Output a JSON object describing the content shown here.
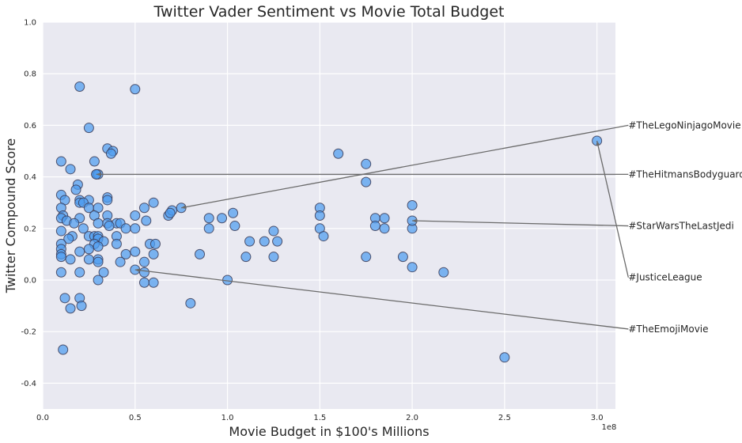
{
  "chart_data": {
    "type": "scatter",
    "title": "Twitter Vader Sentiment vs Movie Total Budget",
    "xlabel": "Movie Budget in $100's Millions",
    "ylabel": "Twitter Compound Score",
    "x_offset_label": "1e8",
    "xlim": [
      0,
      3.1
    ],
    "ylim": [
      -0.5,
      1.0
    ],
    "x_unit_note": "x values in units of 1e8",
    "xticks": [
      "0.0",
      "0.5",
      "1.0",
      "1.5",
      "2.0",
      "2.5",
      "3.0"
    ],
    "xtick_values": [
      0,
      0.5,
      1.0,
      1.5,
      2.0,
      2.5,
      3.0
    ],
    "yticks": [
      "-0.4",
      "-0.2",
      "0.0",
      "0.2",
      "0.4",
      "0.6",
      "0.8",
      "1.0"
    ],
    "ytick_values": [
      -0.4,
      -0.2,
      0.0,
      0.2,
      0.4,
      0.6,
      0.8,
      1.0
    ],
    "grid": true,
    "background": "#e9e9f1",
    "marker_color": "#4d9cf0",
    "marker_edge": "#3a3a55",
    "points": [
      [
        0.2,
        0.75
      ],
      [
        0.5,
        0.74
      ],
      [
        0.25,
        0.59
      ],
      [
        0.35,
        0.51
      ],
      [
        0.38,
        0.5
      ],
      [
        0.37,
        0.49
      ],
      [
        0.1,
        0.46
      ],
      [
        0.28,
        0.46
      ],
      [
        0.15,
        0.43
      ],
      [
        0.29,
        0.41
      ],
      [
        0.3,
        0.41
      ],
      [
        0.19,
        0.37
      ],
      [
        0.18,
        0.35
      ],
      [
        0.1,
        0.33
      ],
      [
        0.35,
        0.32
      ],
      [
        0.12,
        0.31
      ],
      [
        0.2,
        0.31
      ],
      [
        0.25,
        0.31
      ],
      [
        0.35,
        0.31
      ],
      [
        0.2,
        0.3
      ],
      [
        0.22,
        0.3
      ],
      [
        0.6,
        0.3
      ],
      [
        0.1,
        0.28
      ],
      [
        0.25,
        0.28
      ],
      [
        0.3,
        0.28
      ],
      [
        0.55,
        0.28
      ],
      [
        0.28,
        0.25
      ],
      [
        0.35,
        0.25
      ],
      [
        0.2,
        0.24
      ],
      [
        0.11,
        0.25
      ],
      [
        0.5,
        0.25
      ],
      [
        0.1,
        0.24
      ],
      [
        0.13,
        0.23
      ],
      [
        0.56,
        0.23
      ],
      [
        0.35,
        0.22
      ],
      [
        0.3,
        0.22
      ],
      [
        0.4,
        0.22
      ],
      [
        0.42,
        0.22
      ],
      [
        0.17,
        0.22
      ],
      [
        0.36,
        0.21
      ],
      [
        0.22,
        0.2
      ],
      [
        0.45,
        0.2
      ],
      [
        0.5,
        0.2
      ],
      [
        0.1,
        0.19
      ],
      [
        0.25,
        0.17
      ],
      [
        0.28,
        0.17
      ],
      [
        0.3,
        0.17
      ],
      [
        0.16,
        0.17
      ],
      [
        0.4,
        0.17
      ],
      [
        0.14,
        0.16
      ],
      [
        0.3,
        0.16
      ],
      [
        0.33,
        0.15
      ],
      [
        0.28,
        0.14
      ],
      [
        0.1,
        0.14
      ],
      [
        0.4,
        0.14
      ],
      [
        0.58,
        0.14
      ],
      [
        0.61,
        0.14
      ],
      [
        0.3,
        0.13
      ],
      [
        0.1,
        0.12
      ],
      [
        0.25,
        0.12
      ],
      [
        0.2,
        0.11
      ],
      [
        0.5,
        0.11
      ],
      [
        0.1,
        0.1
      ],
      [
        0.45,
        0.1
      ],
      [
        0.6,
        0.1
      ],
      [
        0.1,
        0.09
      ],
      [
        0.3,
        0.08
      ],
      [
        0.15,
        0.08
      ],
      [
        0.25,
        0.08
      ],
      [
        0.42,
        0.07
      ],
      [
        0.55,
        0.07
      ],
      [
        0.3,
        0.07
      ],
      [
        0.1,
        0.03
      ],
      [
        0.2,
        0.03
      ],
      [
        0.33,
        0.03
      ],
      [
        0.55,
        0.03
      ],
      [
        0.3,
        0.0
      ],
      [
        0.55,
        -0.01
      ],
      [
        0.6,
        -0.01
      ],
      [
        0.12,
        -0.07
      ],
      [
        0.2,
        -0.07
      ],
      [
        0.15,
        -0.11
      ],
      [
        0.21,
        -0.1
      ],
      [
        0.11,
        -0.27
      ],
      [
        0.68,
        0.25
      ],
      [
        0.7,
        0.27
      ],
      [
        0.69,
        0.26
      ],
      [
        0.9,
        0.24
      ],
      [
        0.97,
        0.24
      ],
      [
        1.03,
        0.26
      ],
      [
        0.9,
        0.2
      ],
      [
        1.04,
        0.21
      ],
      [
        0.85,
        0.1
      ],
      [
        1.12,
        0.15
      ],
      [
        1.1,
        0.09
      ],
      [
        1.2,
        0.15
      ],
      [
        1.25,
        0.19
      ],
      [
        1.27,
        0.15
      ],
      [
        1.25,
        0.09
      ],
      [
        0.8,
        -0.09
      ],
      [
        1.0,
        0.0
      ],
      [
        1.5,
        0.28
      ],
      [
        1.5,
        0.25
      ],
      [
        1.5,
        0.2
      ],
      [
        1.52,
        0.17
      ],
      [
        1.6,
        0.49
      ],
      [
        1.75,
        0.45
      ],
      [
        1.75,
        0.38
      ],
      [
        1.8,
        0.24
      ],
      [
        1.85,
        0.24
      ],
      [
        1.8,
        0.21
      ],
      [
        1.85,
        0.2
      ],
      [
        1.75,
        0.09
      ],
      [
        1.95,
        0.09
      ],
      [
        2.0,
        0.29
      ],
      [
        2.0,
        0.2
      ],
      [
        2.0,
        0.05
      ],
      [
        2.17,
        0.03
      ],
      [
        2.5,
        -0.3
      ],
      [
        3.0,
        0.54
      ],
      [
        0.29,
        0.41
      ],
      [
        0.75,
        0.28
      ],
      [
        0.5,
        0.04
      ],
      [
        2.0,
        0.23
      ]
    ],
    "annotations": [
      {
        "text": "#TheLegoNinjagoMovie",
        "point": [
          0.75,
          0.28
        ],
        "text_at": [
          3.17,
          0.6
        ]
      },
      {
        "text": "#TheHitmansBodyguard",
        "point": [
          0.29,
          0.41
        ],
        "text_at": [
          3.17,
          0.41
        ]
      },
      {
        "text": "#StarWarsTheLastJedi",
        "point": [
          2.0,
          0.23
        ],
        "text_at": [
          3.17,
          0.21
        ]
      },
      {
        "text": "#JusticeLeague",
        "point": [
          3.0,
          0.54
        ],
        "text_at": [
          3.17,
          0.01
        ]
      },
      {
        "text": "#TheEmojiMovie",
        "point": [
          0.5,
          0.04
        ],
        "text_at": [
          3.17,
          -0.19
        ]
      }
    ]
  }
}
